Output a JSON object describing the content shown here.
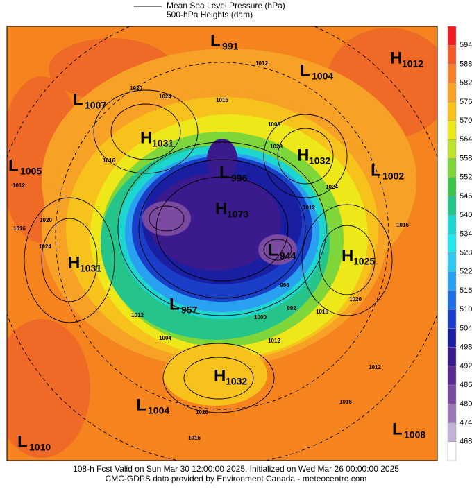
{
  "header": {
    "legend_line": "Mean Sea Level Pressure (hPa)",
    "legend_fill": "500-hPa Heights (dam)"
  },
  "colorbar": {
    "labels": [
      594,
      588,
      582,
      576,
      570,
      564,
      558,
      552,
      546,
      540,
      534,
      528,
      522,
      516,
      510,
      504,
      498,
      492,
      486,
      480,
      474,
      468
    ],
    "colors": [
      "#f01e1e",
      "#f25a28",
      "#f5822a",
      "#f7a126",
      "#f7c21c",
      "#eee81a",
      "#bfe32a",
      "#7ed63a",
      "#3fc44a",
      "#24c48a",
      "#1ed6d0",
      "#22e6f0",
      "#30c8f0",
      "#2aa0f0",
      "#1e6ee6",
      "#1a3ec8",
      "#1a1ea0",
      "#3a1a8c",
      "#5a2a90",
      "#7a4aa0",
      "#9a78b8",
      "#c4b0d8",
      "#ffffff"
    ]
  },
  "centers": [
    {
      "letter": "L",
      "value": "991"
    },
    {
      "letter": "L",
      "value": "1004"
    },
    {
      "letter": "H",
      "value": "1012"
    },
    {
      "letter": "L",
      "value": "1007"
    },
    {
      "letter": "H",
      "value": "1031"
    },
    {
      "letter": "H",
      "value": "1032"
    },
    {
      "letter": "L",
      "value": "1002"
    },
    {
      "letter": "L",
      "value": "1005"
    },
    {
      "letter": "L",
      "value": "996"
    },
    {
      "letter": "H",
      "value": "1073"
    },
    {
      "letter": "L",
      "value": "944"
    },
    {
      "letter": "H",
      "value": "1025"
    },
    {
      "letter": "H",
      "value": "1031"
    },
    {
      "letter": "L",
      "value": "957"
    },
    {
      "letter": "H",
      "value": "1032"
    },
    {
      "letter": "L",
      "value": "1004"
    },
    {
      "letter": "L",
      "value": "1008"
    },
    {
      "letter": "L",
      "value": "1010"
    }
  ],
  "isobar_labels": [
    "1012",
    "1020",
    "1024",
    "1016",
    "1016",
    "1012",
    "1016",
    "1020",
    "1024",
    "1008",
    "1028",
    "1024",
    "1012",
    "1016",
    "1020",
    "1012",
    "1000",
    "992",
    "996",
    "1016",
    "1004",
    "1012",
    "1012",
    "1020",
    "1016",
    "1016"
  ],
  "footer": {
    "line1": "108-h Fcst Valid on Sun Mar 30 12:00:00 2025, Initialized on Wed Mar 26 00:00:00 2025",
    "line2": "CMC-GDPS data provided by Environment Canada - meteocentre.com"
  }
}
